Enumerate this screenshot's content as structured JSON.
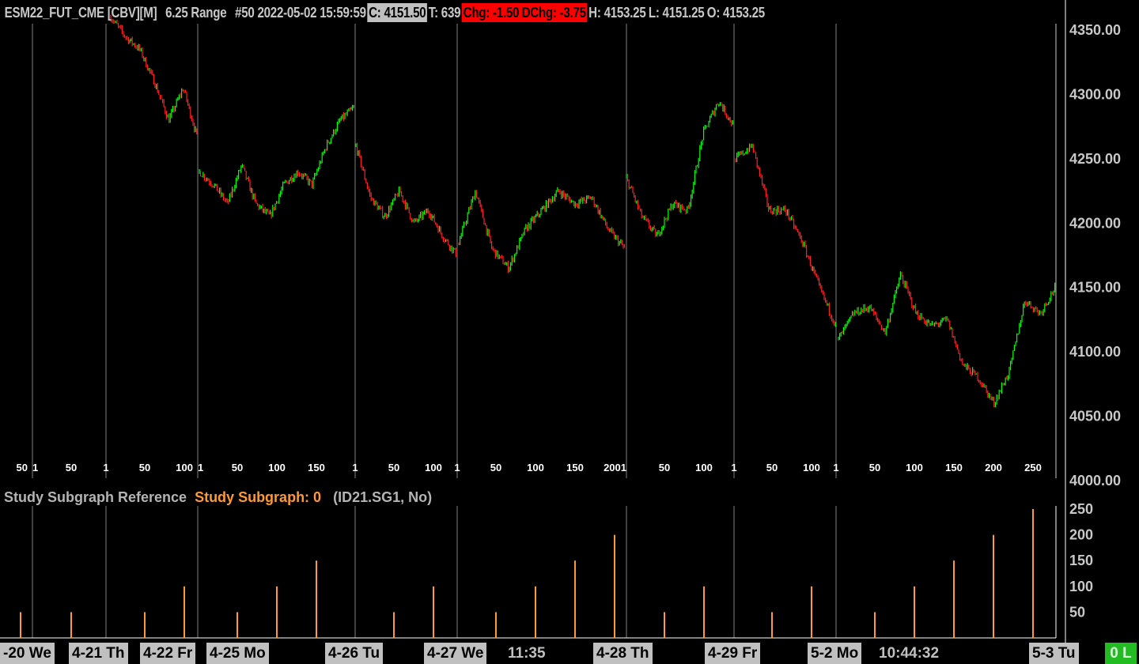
{
  "header": {
    "symbol": "ESM22_FUT_CME [CBV][M]",
    "bar_type": "6.25 Range",
    "bar_info": "#50 2022-05-02 15:59:59",
    "close": "C: 4151.50",
    "trades": "T: 639",
    "change": "Chg: -1.50",
    "daily_change": "DChg: -3.75",
    "high": "H: 4153.25",
    "low": "L: 4151.25",
    "open": "O: 4153.25"
  },
  "study": {
    "name": "Study Subgraph Reference",
    "subgraph": "Study Subgraph: 0",
    "ref": "(ID21.SG1, No)"
  },
  "colors": {
    "up": "#00ff00",
    "down": "#ff2020",
    "subgraph": "#ff9933",
    "grid": "#808080",
    "neg_box": "#ff0000",
    "status": "#22bb22"
  },
  "status_badge": "0 L",
  "chart_data": [
    {
      "type": "candlestick",
      "ylim": [
        4000,
        4360
      ],
      "y_ticks": [
        "4350.00",
        "4300.00",
        "4250.00",
        "4200.00",
        "4150.00",
        "4100.00",
        "4050.00",
        "4000.00"
      ],
      "bar_number_labels": [
        "50",
        "1",
        "50",
        "1",
        "50",
        "100",
        "1",
        "50",
        "100",
        "150",
        "1",
        "50",
        "100",
        "1",
        "50",
        "100",
        "150",
        "2001",
        "50",
        "100",
        "1",
        "50",
        "100",
        "1",
        "50",
        "100",
        "150",
        "200",
        "250"
      ],
      "x_labels": [
        {
          "text": "-20 We",
          "kind": "day"
        },
        {
          "text": "4-21 Th",
          "kind": "day"
        },
        {
          "text": "4-22 Fr",
          "kind": "day"
        },
        {
          "text": "4-25 Mo",
          "kind": "day"
        },
        {
          "text": "4-26 Tu",
          "kind": "day"
        },
        {
          "text": "4-27 We",
          "kind": "day"
        },
        {
          "text": "11:35",
          "kind": "time"
        },
        {
          "text": "4-28 Th",
          "kind": "day"
        },
        {
          "text": "4-29 Fr",
          "kind": "day"
        },
        {
          "text": "5-2 Mo",
          "kind": "day"
        },
        {
          "text": "10:44:32",
          "kind": "time"
        },
        {
          "text": "5-3 Tu",
          "kind": "day"
        }
      ],
      "sessions": [
        {
          "day": "4-21",
          "closes": [
            4360,
            4345,
            4335,
            4310,
            4280,
            4305,
            4265
          ]
        },
        {
          "day": "4-22",
          "closes": [
            4240,
            4230,
            4215,
            4245,
            4215,
            4205,
            4230,
            4240,
            4230,
            4260,
            4280,
            4290
          ]
        },
        {
          "day": "4-25",
          "closes": [
            4260,
            4220,
            4205,
            4225,
            4200,
            4210,
            4190,
            4175
          ]
        },
        {
          "day": "4-26",
          "closes": [
            4185,
            4225,
            4180,
            4165,
            4195,
            4210,
            4225,
            4215,
            4220,
            4195,
            4180
          ]
        },
        {
          "day": "4-27",
          "closes": [
            4235,
            4205,
            4190,
            4215,
            4210,
            4270,
            4295,
            4275
          ]
        },
        {
          "day": "4-28",
          "closes": [
            4250,
            4260,
            4210,
            4210,
            4185,
            4150,
            4120
          ]
        },
        {
          "day": "5-2",
          "closes": [
            4110,
            4130,
            4135,
            4115,
            4160,
            4130,
            4120,
            4125,
            4090,
            4080,
            4060,
            4085,
            4140,
            4130,
            4151.5
          ]
        }
      ]
    },
    {
      "type": "bar",
      "name": "Study Subgraph: 0",
      "ylim": [
        0,
        260
      ],
      "y_ticks": [
        "250",
        "200",
        "150",
        "100",
        "50"
      ],
      "values": [
        50,
        50,
        50,
        100,
        50,
        100,
        150,
        50,
        100,
        50,
        100,
        150,
        200,
        50,
        100,
        50,
        100,
        50,
        100,
        150,
        200,
        250
      ]
    }
  ]
}
